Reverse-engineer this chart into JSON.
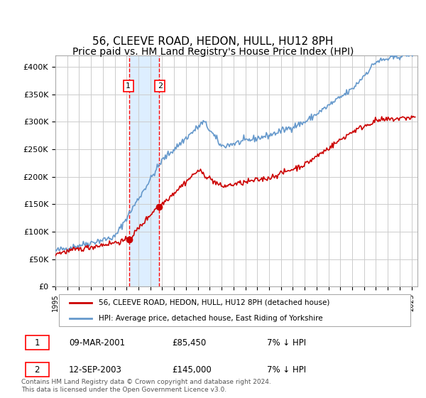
{
  "title": "56, CLEEVE ROAD, HEDON, HULL, HU12 8PH",
  "subtitle": "Price paid vs. HM Land Registry's House Price Index (HPI)",
  "title_fontsize": 11,
  "subtitle_fontsize": 10,
  "ylabel_ticks": [
    "£0",
    "£50K",
    "£100K",
    "£150K",
    "£200K",
    "£250K",
    "£300K",
    "£350K",
    "£400K"
  ],
  "ytick_vals": [
    0,
    50000,
    100000,
    150000,
    200000,
    250000,
    300000,
    350000,
    400000
  ],
  "ylim": [
    0,
    420000
  ],
  "xlim_start": 1995.0,
  "xlim_end": 2025.5,
  "background_color": "#ffffff",
  "grid_color": "#cccccc",
  "purchase1_date": 2001.19,
  "purchase1_price": 85450,
  "purchase2_date": 2003.71,
  "purchase2_price": 145000,
  "shade_color": "#ddeeff",
  "vline_color": "#ff0000",
  "legend_label_red": "56, CLEEVE ROAD, HEDON, HULL, HU12 8PH (detached house)",
  "legend_label_blue": "HPI: Average price, detached house, East Riding of Yorkshire",
  "table_row1": [
    "1",
    "09-MAR-2001",
    "£85,450",
    "7% ↓ HPI"
  ],
  "table_row2": [
    "2",
    "12-SEP-2003",
    "£145,000",
    "7% ↓ HPI"
  ],
  "footer": "Contains HM Land Registry data © Crown copyright and database right 2024.\nThis data is licensed under the Open Government Licence v3.0.",
  "red_line_color": "#cc0000",
  "blue_line_color": "#6699cc"
}
